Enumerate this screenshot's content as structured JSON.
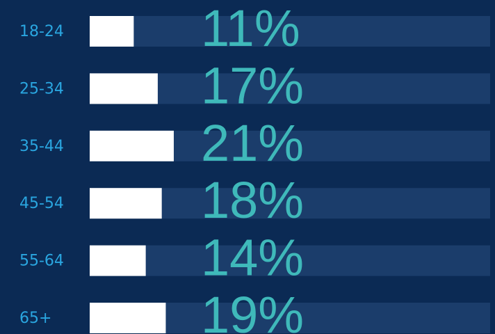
{
  "chart_data": {
    "type": "bar",
    "orientation": "horizontal",
    "categories": [
      "18-24",
      "25-34",
      "35-44",
      "45-54",
      "55-64",
      "65+"
    ],
    "values": [
      11,
      17,
      21,
      18,
      14,
      19
    ],
    "value_labels": [
      "11%",
      "17%",
      "21%",
      "18%",
      "14%",
      "19%"
    ],
    "xlim": [
      0,
      100
    ],
    "color": "#ffffff",
    "track_color": "#1b3d6b",
    "category_color": "#2aa6e0",
    "value_label_color": "#3fb9ba",
    "background": "#0b2a54"
  }
}
